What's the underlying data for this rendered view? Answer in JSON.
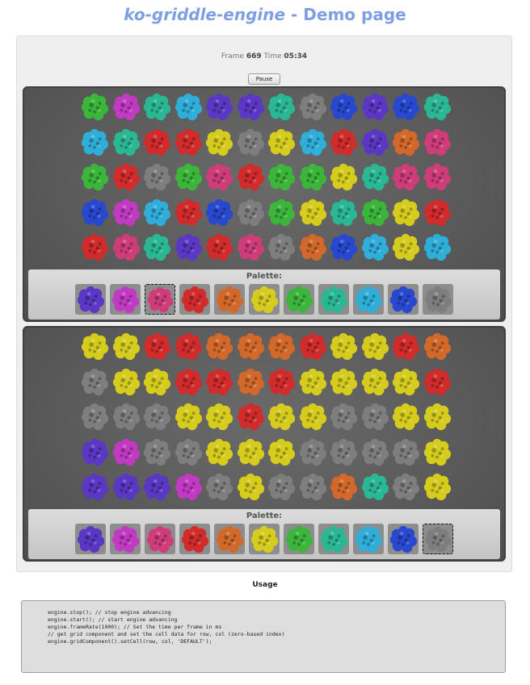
{
  "header": {
    "title_italic": "ko-griddle-engine",
    "title_rest": " - Demo page"
  },
  "status": {
    "frame_label": "Frame",
    "frame_value": "669",
    "time_label": "Time",
    "time_value": "05:34"
  },
  "controls": {
    "pause_label": "Pause"
  },
  "colors": {
    "purple": "#5a37c4",
    "magenta": "#c23ac4",
    "pink": "#cf3c7a",
    "red": "#d12b2b",
    "orange": "#d2692a",
    "yellow": "#d6cc1e",
    "green": "#3bb63b",
    "teal": "#2ab894",
    "cyan": "#2eaed8",
    "blue": "#2748cf",
    "gray": "#7e7e7e"
  },
  "engines": [
    {
      "grid": [
        [
          "green",
          "magenta",
          "teal",
          "cyan",
          "purple",
          "purple",
          "teal",
          "gray",
          "blue",
          "purple",
          "blue",
          "teal"
        ],
        [
          "cyan",
          "teal",
          "red",
          "red",
          "yellow",
          "gray",
          "yellow",
          "cyan",
          "red",
          "purple",
          "orange",
          "pink"
        ],
        [
          "green",
          "red",
          "gray",
          "green",
          "pink",
          "red",
          "green",
          "green",
          "yellow",
          "teal",
          "pink",
          "pink"
        ],
        [
          "blue",
          "magenta",
          "cyan",
          "red",
          "blue",
          "gray",
          "green",
          "yellow",
          "teal",
          "green",
          "yellow",
          "red"
        ],
        [
          "red",
          "pink",
          "teal",
          "purple",
          "red",
          "pink",
          "gray",
          "orange",
          "blue",
          "cyan",
          "yellow",
          "cyan"
        ]
      ],
      "palette_label": "Palette:",
      "palette": [
        "purple",
        "magenta",
        "pink",
        "red",
        "orange",
        "yellow",
        "green",
        "teal",
        "cyan",
        "blue",
        "gray"
      ],
      "selected": "pink"
    },
    {
      "grid": [
        [
          "yellow",
          "yellow",
          "red",
          "red",
          "orange",
          "orange",
          "orange",
          "red",
          "yellow",
          "yellow",
          "red",
          "orange"
        ],
        [
          "gray",
          "yellow",
          "yellow",
          "red",
          "red",
          "orange",
          "red",
          "yellow",
          "yellow",
          "yellow",
          "yellow",
          "red"
        ],
        [
          "gray",
          "gray",
          "gray",
          "yellow",
          "yellow",
          "red",
          "yellow",
          "yellow",
          "gray",
          "gray",
          "yellow",
          "yellow"
        ],
        [
          "purple",
          "magenta",
          "gray",
          "gray",
          "yellow",
          "yellow",
          "yellow",
          "gray",
          "gray",
          "gray",
          "gray",
          "yellow"
        ],
        [
          "purple",
          "purple",
          "purple",
          "magenta",
          "gray",
          "yellow",
          "gray",
          "gray",
          "orange",
          "teal",
          "gray",
          "yellow"
        ]
      ],
      "palette_label": "Palette:",
      "palette": [
        "purple",
        "magenta",
        "pink",
        "red",
        "orange",
        "yellow",
        "green",
        "teal",
        "cyan",
        "blue",
        "gray"
      ],
      "selected": "gray"
    }
  ],
  "usage": {
    "title": "Usage",
    "code_lines": [
      "engine.stop(); // stop engine advancing",
      "engine.start(); // start engine advancing",
      "engine.frameRate(1000); // Set the time per frame in ms",
      "",
      "// get grid component and set the cell data for row, col (zero-based index)",
      "engine.gridComponent().setCell(row, col, 'DEFAULT');"
    ]
  }
}
